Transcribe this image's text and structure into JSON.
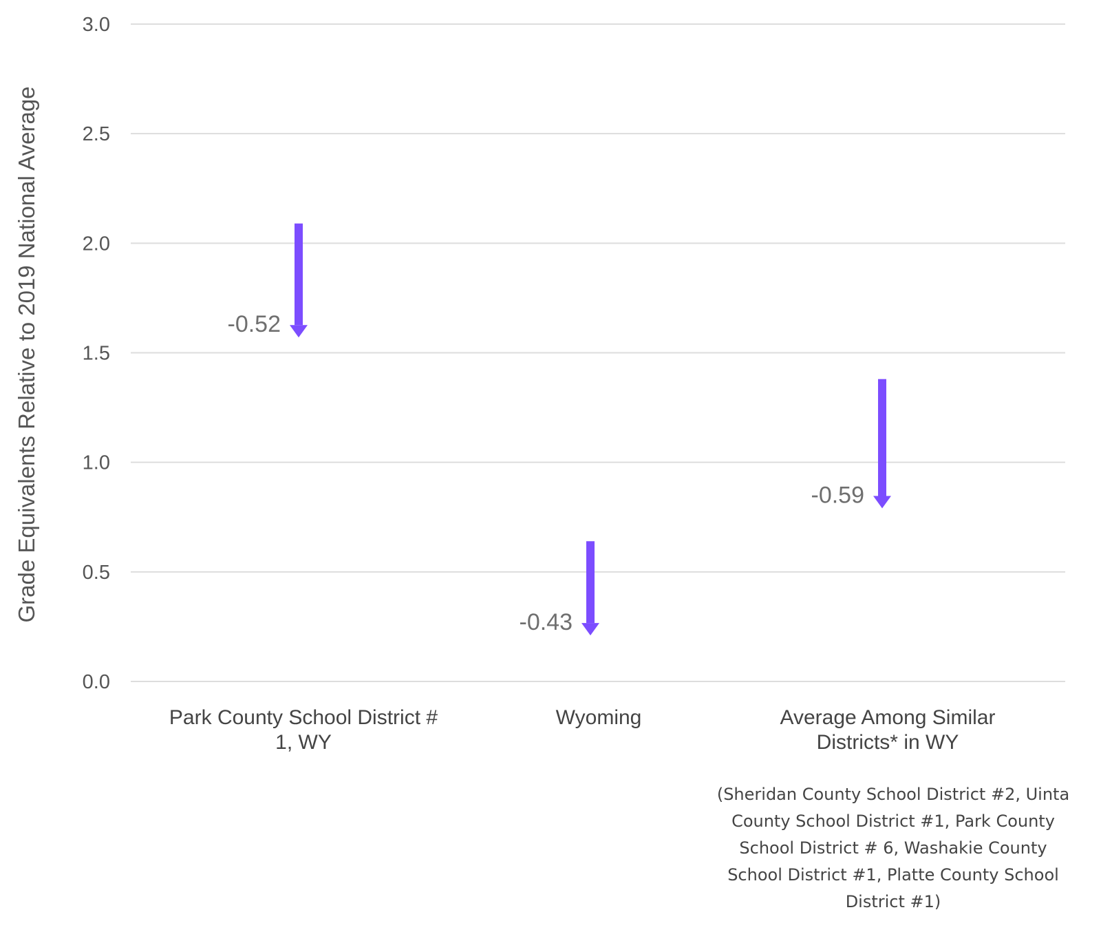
{
  "chart_data": {
    "type": "arrow",
    "ylabel": "Grade Equivalents Relative to 2019 National Average",
    "xlabel": "",
    "title": "",
    "ylim": [
      0,
      3
    ],
    "yticks": [
      "0.0",
      "0.5",
      "1.0",
      "1.5",
      "2.0",
      "2.5",
      "3.0"
    ],
    "ytick_values": [
      0,
      0.5,
      1.0,
      1.5,
      2.0,
      2.5,
      3.0
    ],
    "grid": true,
    "arrow_color": "#7c4dff",
    "categories": [
      {
        "label_lines": [
          "Park County School District #",
          "1, WY"
        ],
        "start": 2.09,
        "end": 1.57,
        "change_label": "-0.52"
      },
      {
        "label_lines": [
          "Wyoming"
        ],
        "start": 0.64,
        "end": 0.21,
        "change_label": "-0.43"
      },
      {
        "label_lines": [
          "Average Among Similar",
          "Districts* in WY"
        ],
        "start": 1.38,
        "end": 0.79,
        "change_label": "-0.59"
      }
    ],
    "note_lines": [
      "(Sheridan County School District #2, Uinta",
      "County School District #1, Park County",
      "School District # 6, Washakie County",
      "School District #1, Platte County School",
      "District #1)"
    ]
  }
}
